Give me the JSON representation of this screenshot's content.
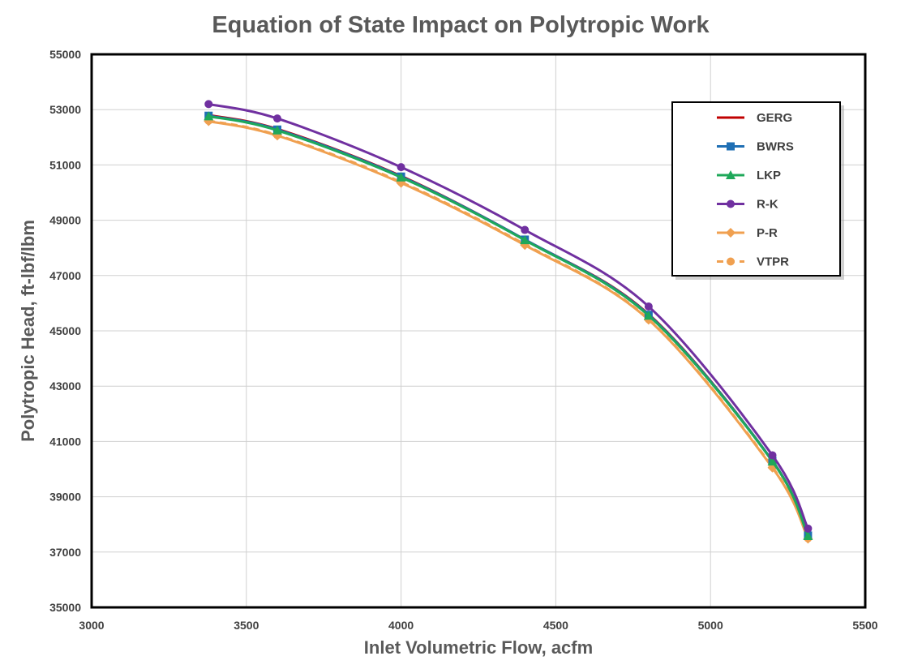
{
  "chart_data": {
    "type": "line",
    "title": "Equation of State Impact on Polytropic Work",
    "xlabel": "Inlet Volumetric Flow, acfm",
    "ylabel": "Polytropic Head, ft-lbf/lbm",
    "xlim": [
      3000,
      5500
    ],
    "ylim": [
      35000,
      55000
    ],
    "xticks": [
      3000,
      3500,
      4000,
      4500,
      5000,
      5500
    ],
    "yticks": [
      35000,
      37000,
      39000,
      41000,
      43000,
      45000,
      47000,
      49000,
      51000,
      53000,
      55000
    ],
    "grid": true,
    "legend_position": "top-right",
    "series": [
      {
        "name": "GERG",
        "color": "#c00000",
        "marker": "none",
        "dashed": false,
        "x": [
          3378,
          3600,
          4000,
          4400,
          4800,
          5200,
          5315
        ],
        "y": [
          52800,
          52300,
          50600,
          48300,
          45600,
          40300,
          37600
        ]
      },
      {
        "name": "BWRS",
        "color": "#1f6fb4",
        "marker": "square",
        "dashed": false,
        "x": [
          3378,
          3600,
          4000,
          4400,
          4800,
          5200,
          5315
        ],
        "y": [
          52780,
          52280,
          50580,
          48300,
          45580,
          40300,
          37600
        ]
      },
      {
        "name": "LKP",
        "color": "#1fa85a",
        "marker": "triangle",
        "dashed": false,
        "x": [
          3378,
          3600,
          4000,
          4400,
          4800,
          5200,
          5315
        ],
        "y": [
          52760,
          52250,
          50550,
          48280,
          45550,
          40280,
          37580
        ]
      },
      {
        "name": "R-K",
        "color": "#7030a0",
        "marker": "circle",
        "dashed": false,
        "x": [
          3378,
          3600,
          4000,
          4400,
          4800,
          5200,
          5315
        ],
        "y": [
          53200,
          52680,
          50920,
          48650,
          45880,
          40500,
          37850
        ]
      },
      {
        "name": "P-R",
        "color": "#f0a050",
        "marker": "diamond",
        "dashed": false,
        "x": [
          3378,
          3600,
          4000,
          4400,
          4800,
          5200,
          5315
        ],
        "y": [
          52580,
          52060,
          50350,
          48100,
          45400,
          40050,
          37480
        ]
      },
      {
        "name": "VTPR",
        "color": "#f0a050",
        "marker": "circle",
        "dashed": true,
        "x": [
          3378,
          3600,
          4000,
          4400,
          4800,
          5200,
          5315
        ],
        "y": [
          52600,
          52080,
          50380,
          48130,
          45420,
          40080,
          37500
        ]
      }
    ]
  }
}
